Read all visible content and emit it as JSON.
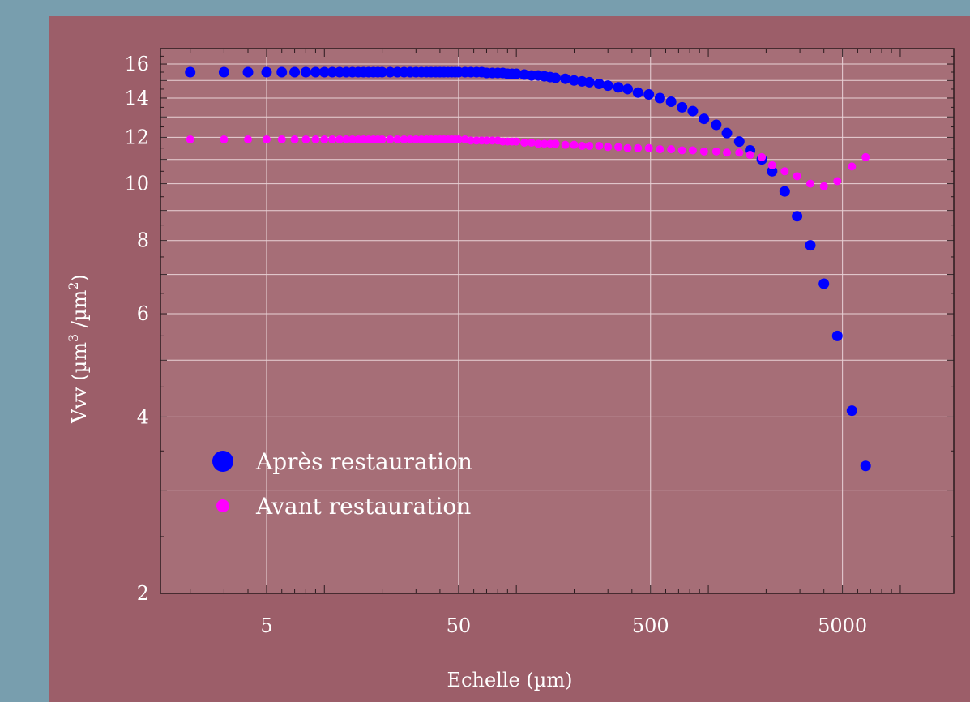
{
  "chart_data": {
    "type": "scatter",
    "xlabel": "Echelle (µm)",
    "ylabel_main": "Vvv (µm",
    "ylabel_sup1": "3",
    "ylabel_mid": " /µm",
    "ylabel_sup2": "2",
    "ylabel_end": ")",
    "x_scale": "log",
    "y_scale": "log",
    "xlim": [
      1.4,
      19000
    ],
    "ylim": [
      2,
      17
    ],
    "x_ticks": [
      5,
      50,
      500,
      5000
    ],
    "x_tick_labels": [
      "5",
      "50",
      "500",
      "5000"
    ],
    "y_ticks": [
      2,
      4,
      6,
      8,
      10,
      12,
      14,
      16
    ],
    "y_tick_labels": [
      "2",
      "4",
      "6",
      "8",
      "10",
      "12",
      "14",
      "16"
    ],
    "grid": true,
    "legend_position": "lower-left",
    "series": [
      {
        "name": "Après restauration",
        "color": "#0000ff",
        "marker_size": "large",
        "points": [
          [
            2.0,
            15.5
          ],
          [
            3.0,
            15.5
          ],
          [
            4.0,
            15.5
          ],
          [
            5.0,
            15.5
          ],
          [
            6.0,
            15.5
          ],
          [
            7.0,
            15.5
          ],
          [
            8.0,
            15.5
          ],
          [
            9.0,
            15.5
          ],
          [
            10,
            15.5
          ],
          [
            11,
            15.5
          ],
          [
            12,
            15.5
          ],
          [
            13,
            15.5
          ],
          [
            14,
            15.5
          ],
          [
            15,
            15.5
          ],
          [
            16,
            15.5
          ],
          [
            17,
            15.5
          ],
          [
            18,
            15.5
          ],
          [
            19,
            15.5
          ],
          [
            20,
            15.5
          ],
          [
            22,
            15.5
          ],
          [
            24,
            15.5
          ],
          [
            26,
            15.5
          ],
          [
            28,
            15.5
          ],
          [
            30,
            15.5
          ],
          [
            32,
            15.5
          ],
          [
            34,
            15.5
          ],
          [
            36,
            15.5
          ],
          [
            38,
            15.5
          ],
          [
            40,
            15.5
          ],
          [
            42,
            15.5
          ],
          [
            44,
            15.5
          ],
          [
            46,
            15.5
          ],
          [
            48,
            15.5
          ],
          [
            50,
            15.5
          ],
          [
            54,
            15.5
          ],
          [
            58,
            15.5
          ],
          [
            62,
            15.5
          ],
          [
            66,
            15.5
          ],
          [
            70,
            15.45
          ],
          [
            75,
            15.45
          ],
          [
            80,
            15.45
          ],
          [
            85,
            15.45
          ],
          [
            90,
            15.4
          ],
          [
            95,
            15.4
          ],
          [
            100,
            15.4
          ],
          [
            110,
            15.35
          ],
          [
            120,
            15.3
          ],
          [
            130,
            15.3
          ],
          [
            140,
            15.25
          ],
          [
            150,
            15.2
          ],
          [
            160,
            15.15
          ],
          [
            180,
            15.1
          ],
          [
            200,
            15.0
          ],
          [
            220,
            14.95
          ],
          [
            240,
            14.9
          ],
          [
            270,
            14.8
          ],
          [
            300,
            14.7
          ],
          [
            340,
            14.6
          ],
          [
            380,
            14.5
          ],
          [
            430,
            14.3
          ],
          [
            490,
            14.2
          ],
          [
            560,
            14.0
          ],
          [
            640,
            13.8
          ],
          [
            730,
            13.5
          ],
          [
            830,
            13.3
          ],
          [
            950,
            12.9
          ],
          [
            1100,
            12.6
          ],
          [
            1250,
            12.2
          ],
          [
            1450,
            11.8
          ],
          [
            1650,
            11.4
          ],
          [
            1900,
            11.0
          ],
          [
            2150,
            10.5
          ],
          [
            2500,
            9.7
          ],
          [
            2900,
            8.8
          ],
          [
            3400,
            7.85
          ],
          [
            4000,
            6.75
          ],
          [
            4700,
            5.5
          ],
          [
            5600,
            4.1
          ],
          [
            6600,
            3.3
          ]
        ]
      },
      {
        "name": "Avant restauration",
        "color": "#ff00ff",
        "marker_size": "small",
        "points": [
          [
            2.0,
            11.9
          ],
          [
            3.0,
            11.9
          ],
          [
            4.0,
            11.9
          ],
          [
            5.0,
            11.9
          ],
          [
            6.0,
            11.9
          ],
          [
            7.0,
            11.9
          ],
          [
            8.0,
            11.9
          ],
          [
            9.0,
            11.9
          ],
          [
            10,
            11.9
          ],
          [
            11,
            11.9
          ],
          [
            12,
            11.9
          ],
          [
            13,
            11.9
          ],
          [
            14,
            11.9
          ],
          [
            15,
            11.9
          ],
          [
            16,
            11.9
          ],
          [
            17,
            11.9
          ],
          [
            18,
            11.9
          ],
          [
            19,
            11.9
          ],
          [
            20,
            11.9
          ],
          [
            22,
            11.9
          ],
          [
            24,
            11.9
          ],
          [
            26,
            11.9
          ],
          [
            28,
            11.9
          ],
          [
            30,
            11.9
          ],
          [
            32,
            11.9
          ],
          [
            34,
            11.9
          ],
          [
            36,
            11.9
          ],
          [
            38,
            11.9
          ],
          [
            40,
            11.9
          ],
          [
            42,
            11.9
          ],
          [
            44,
            11.9
          ],
          [
            46,
            11.9
          ],
          [
            48,
            11.9
          ],
          [
            50,
            11.9
          ],
          [
            54,
            11.9
          ],
          [
            58,
            11.85
          ],
          [
            62,
            11.85
          ],
          [
            66,
            11.85
          ],
          [
            70,
            11.85
          ],
          [
            75,
            11.85
          ],
          [
            80,
            11.85
          ],
          [
            85,
            11.8
          ],
          [
            90,
            11.8
          ],
          [
            95,
            11.8
          ],
          [
            100,
            11.8
          ],
          [
            110,
            11.75
          ],
          [
            120,
            11.75
          ],
          [
            130,
            11.7
          ],
          [
            140,
            11.7
          ],
          [
            150,
            11.7
          ],
          [
            160,
            11.7
          ],
          [
            180,
            11.65
          ],
          [
            200,
            11.65
          ],
          [
            220,
            11.6
          ],
          [
            240,
            11.6
          ],
          [
            270,
            11.6
          ],
          [
            300,
            11.55
          ],
          [
            340,
            11.55
          ],
          [
            380,
            11.5
          ],
          [
            430,
            11.5
          ],
          [
            490,
            11.5
          ],
          [
            560,
            11.45
          ],
          [
            640,
            11.45
          ],
          [
            730,
            11.4
          ],
          [
            830,
            11.4
          ],
          [
            950,
            11.35
          ],
          [
            1100,
            11.35
          ],
          [
            1250,
            11.3
          ],
          [
            1450,
            11.3
          ],
          [
            1650,
            11.2
          ],
          [
            1900,
            11.1
          ],
          [
            2150,
            10.75
          ],
          [
            2500,
            10.5
          ],
          [
            2900,
            10.3
          ],
          [
            3400,
            10.0
          ],
          [
            4000,
            9.9
          ],
          [
            4700,
            10.1
          ],
          [
            5600,
            10.7
          ],
          [
            6600,
            11.1
          ]
        ]
      }
    ]
  }
}
